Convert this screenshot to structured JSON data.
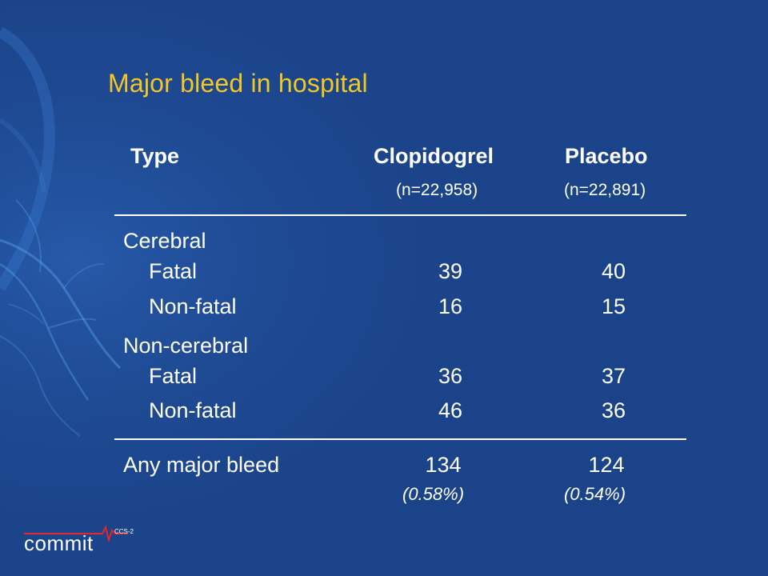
{
  "slide": {
    "title": "Major bleed in hospital"
  },
  "table": {
    "headers": {
      "type": "Type",
      "clopidogrel": "Clopidogrel",
      "clopidogrel_n": "(n=22,958)",
      "placebo": "Placebo",
      "placebo_n": "(n=22,891)"
    },
    "groups": [
      {
        "label": "Cerebral",
        "rows": [
          {
            "label": "Fatal",
            "clopidogrel": "39",
            "placebo": "40"
          },
          {
            "label": "Non-fatal",
            "clopidogrel": "16",
            "placebo": "15"
          }
        ]
      },
      {
        "label": "Non-cerebral",
        "rows": [
          {
            "label": "Fatal",
            "clopidogrel": "36",
            "placebo": "37"
          },
          {
            "label": "Non-fatal",
            "clopidogrel": "46",
            "placebo": "36"
          }
        ]
      }
    ],
    "total": {
      "label": "Any major bleed",
      "clopidogrel": "134",
      "clopidogrel_pct": "(0.58%)",
      "placebo": "124",
      "placebo_pct": "(0.54%)"
    }
  },
  "logo": {
    "word": "commit",
    "tag": "CCS-2"
  },
  "colors": {
    "background": "#1b4389",
    "title": "#f2c824",
    "text": "#ffffff",
    "logo_accent": "#e0282e"
  }
}
